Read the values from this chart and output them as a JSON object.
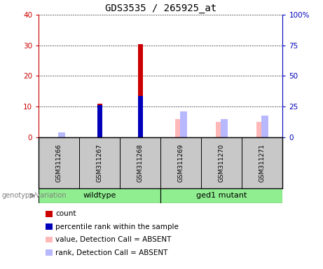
{
  "title": "GDS3535 / 265925_at",
  "samples": [
    "GSM311266",
    "GSM311267",
    "GSM311268",
    "GSM311269",
    "GSM311270",
    "GSM311271"
  ],
  "count_values": [
    0,
    11,
    30.5,
    0,
    0,
    0
  ],
  "percentile_values": [
    0,
    10.5,
    13.5,
    0,
    0,
    0
  ],
  "absent_value": [
    0,
    0,
    0,
    6,
    5,
    5
  ],
  "absent_rank": [
    1.5,
    0,
    0,
    8.5,
    6,
    7
  ],
  "ylim_left": [
    0,
    40
  ],
  "ylim_right": [
    0,
    100
  ],
  "yticks_left": [
    0,
    10,
    20,
    30,
    40
  ],
  "yticks_right": [
    0,
    25,
    50,
    75,
    100
  ],
  "ytick_labels_left": [
    "0",
    "10",
    "20",
    "30",
    "40"
  ],
  "ytick_labels_right": [
    "0",
    "25",
    "50",
    "75",
    "100%"
  ],
  "group_header": "genotype/variation",
  "bar_color_count": "#cc0000",
  "bar_color_percentile": "#0000bb",
  "bar_color_absent_value": "#ffb8b8",
  "bar_color_absent_rank": "#b8b8ff",
  "legend_items": [
    {
      "label": "count",
      "color": "#cc0000"
    },
    {
      "label": "percentile rank within the sample",
      "color": "#0000bb"
    },
    {
      "label": "value, Detection Call = ABSENT",
      "color": "#ffb8b8"
    },
    {
      "label": "rank, Detection Call = ABSENT",
      "color": "#b8b8ff"
    }
  ],
  "sample_bg": "#c8c8c8",
  "fig_bg": "#ffffff",
  "left_tick_color": "#cc0000",
  "right_tick_color": "#0000bb",
  "wildtype_color": "#90ee90",
  "mutant_color": "#90ee90"
}
